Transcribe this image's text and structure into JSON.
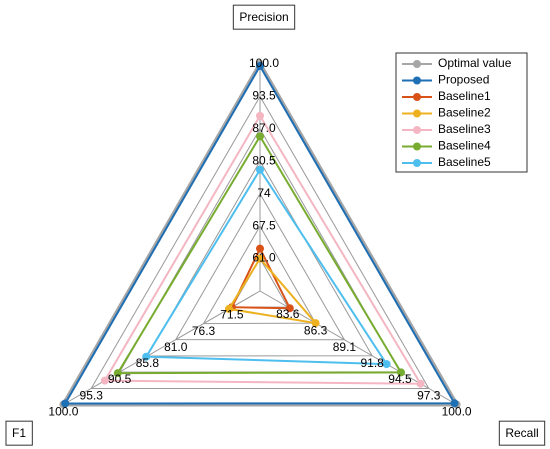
{
  "chart_data": {
    "type": "radar",
    "categories": [
      "Precision",
      "Recall",
      "F1"
    ],
    "axes": [
      {
        "lim": [
          54.5,
          100
        ],
        "ticks": [
          {
            "value": 61,
            "label": "61.0"
          },
          67.5,
          74,
          80.5,
          {
            "value": 87,
            "label": "87.0"
          },
          93.5,
          {
            "value": 100,
            "label": "100.0"
          }
        ]
      },
      {
        "lim": [
          80.9,
          100
        ],
        "ticks": [
          83.6,
          86.3,
          89.1,
          91.8,
          94.5,
          97.3,
          {
            "value": 100,
            "label": "100.0"
          }
        ]
      },
      {
        "lim": [
          66.75,
          100
        ],
        "ticks": [
          71.5,
          76.3,
          {
            "value": 81,
            "label": "81.0"
          },
          85.8,
          90.5,
          95.3,
          {
            "value": 100,
            "label": "100.0"
          }
        ]
      }
    ],
    "grid": true,
    "legend": "upper right",
    "series": [
      {
        "name": "Optimal value",
        "color": "#a6a6a6",
        "values": [
          100,
          100,
          100
        ]
      },
      {
        "name": "Proposed",
        "color": "#1f6fb5",
        "values": [
          99.6,
          99.8,
          99.7
        ]
      },
      {
        "name": "Baseline1",
        "color": "#d95319",
        "values": [
          63,
          83.8,
          71.5
        ]
      },
      {
        "name": "Baseline2",
        "color": "#edb120",
        "values": [
          61,
          86.3,
          72
        ]
      },
      {
        "name": "Baseline3",
        "color": "#f4b6c2",
        "values": [
          89.6,
          96.5,
          93
        ]
      },
      {
        "name": "Baseline4",
        "color": "#77ac30",
        "values": [
          85.5,
          94.6,
          90.8
        ]
      },
      {
        "name": "Baseline5",
        "color": "#4dbeee",
        "values": [
          78.8,
          93.2,
          86
        ]
      }
    ]
  }
}
